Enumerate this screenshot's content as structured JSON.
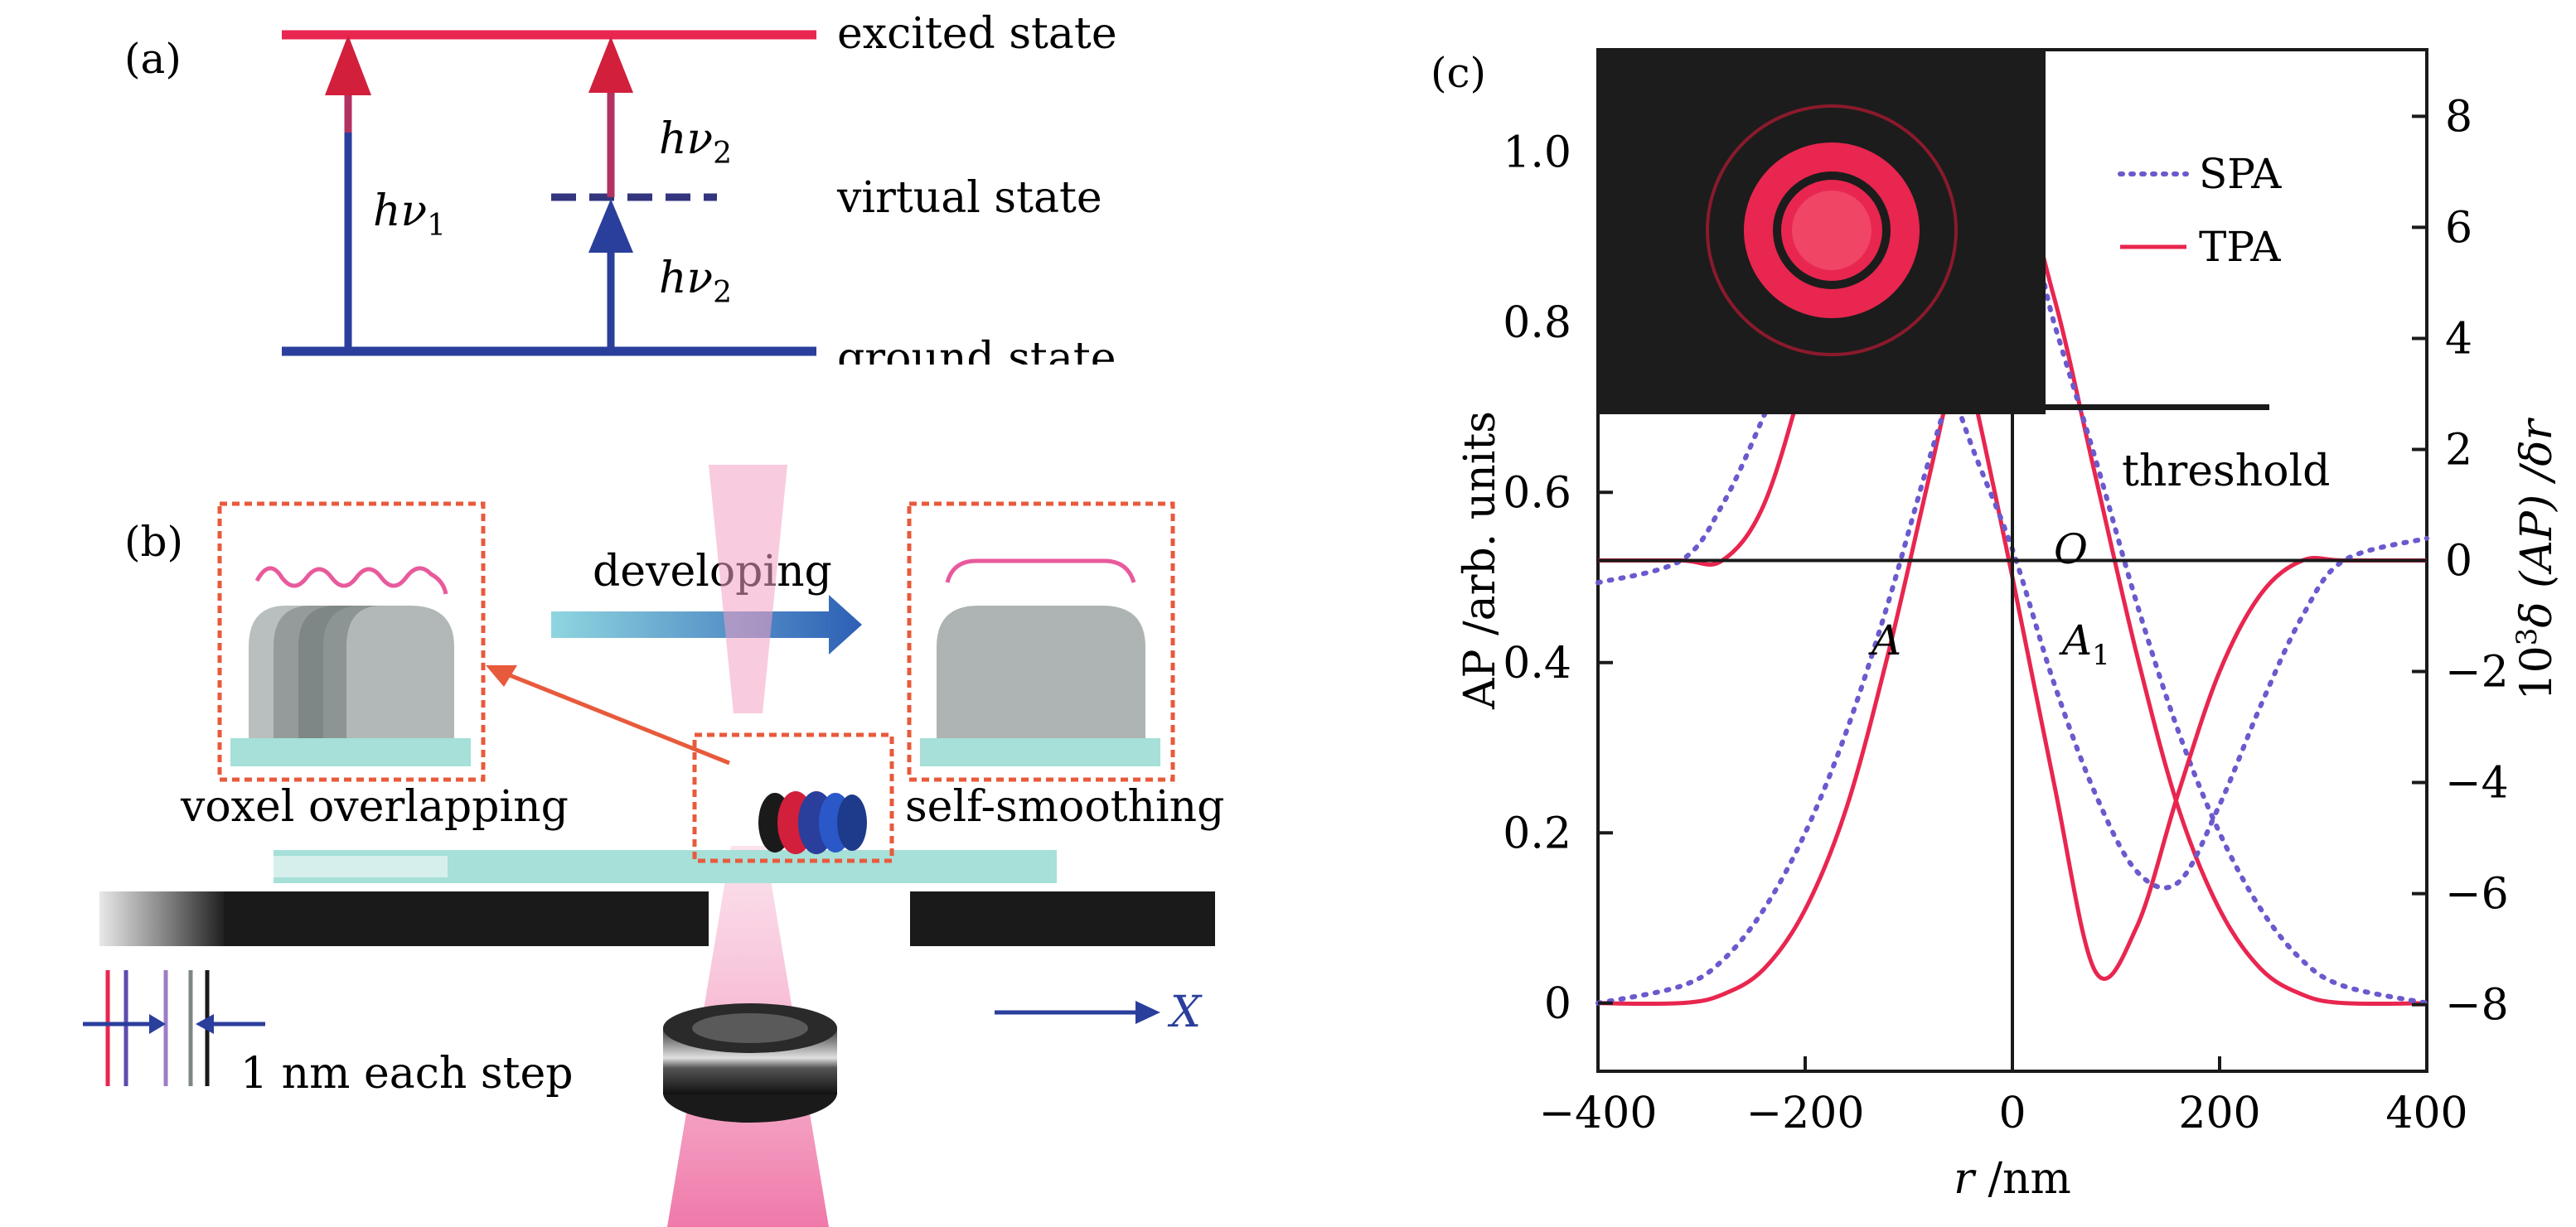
{
  "panel_a": {
    "label": "(a)",
    "excited_state": "excited state",
    "virtual_state": "virtual state",
    "ground_state": "ground state",
    "hv1": "hν",
    "hv1_sub": "1",
    "hv2_top": "hν",
    "hv2_top_sub": "2",
    "hv2_bottom": "hν",
    "hv2_bottom_sub": "2",
    "colors": {
      "excited": "#e8264f",
      "ground": "#2a3e9c",
      "arrow_head_red": "#d11f3c",
      "arrow_head_blue": "#2a3e9c"
    }
  },
  "panel_b": {
    "label": "(b)",
    "developing": "developing",
    "voxel_overlapping": "voxel overlapping",
    "self_smoothing": "self-smoothing",
    "axis_x": "X",
    "step_label": "1 nm each step",
    "colors": {
      "frame": "#e85a3c",
      "beam": "#ee6aa0",
      "stage": "#1a1a1a",
      "substrate": "#a6e0d8",
      "arrow": "#3266b8"
    }
  },
  "panel_c": {
    "label": "(c)",
    "legend": [
      "SPA",
      "TPA"
    ],
    "threshold_label": "threshold",
    "point_O": "O",
    "point_A": "A",
    "point_A1": "A",
    "point_A1_sub": "1",
    "ylabel_left": "AP /arb. units",
    "ylabel_right_prefix": "10",
    "ylabel_right_sup": "3",
    "ylabel_right_rest": "δ (AP) /δr",
    "xlabel_italic": "r",
    "xlabel_rest": " /nm",
    "colors": {
      "tpa": "#e8264f",
      "spa": "#6a5acd",
      "inset_bg": "#1c1c1c",
      "inset_ring": "#e8264f"
    }
  },
  "chart_data": {
    "type": "line",
    "xlabel": "r /nm",
    "ylabel": "AP /arb. units",
    "ylabel_right": "10³δ (AP) /δr",
    "xlim": [
      -400,
      400
    ],
    "ylim": [
      -0.08,
      1.12
    ],
    "ylim_right": [
      -9.2,
      9.2
    ],
    "xticks": [
      "-400",
      "-200",
      "0",
      "200",
      "400"
    ],
    "yticks": [
      "0",
      "0.2",
      "0.4",
      "0.6",
      "0.8",
      "1.0"
    ],
    "yticks_right": [
      "8",
      "6",
      "4",
      "2",
      "0",
      "-2",
      "-4",
      "-6",
      "-8"
    ],
    "legend_position": "top-right",
    "threshold": 0.7,
    "series": [
      {
        "name": "TPA",
        "axis": "left",
        "style": "solid",
        "x": [
          -400,
          -320,
          -280,
          -240,
          -200,
          -160,
          -120,
          -80,
          -40,
          0,
          40,
          80,
          120,
          160,
          200,
          240,
          280,
          320,
          400
        ],
        "values": [
          0.0,
          0.0,
          0.01,
          0.04,
          0.11,
          0.23,
          0.41,
          0.62,
          0.83,
          0.97,
          0.83,
          0.62,
          0.41,
          0.23,
          0.11,
          0.04,
          0.01,
          0.0,
          0.0
        ]
      },
      {
        "name": "SPA",
        "axis": "left",
        "style": "dotted",
        "x": [
          -400,
          -320,
          -280,
          -240,
          -200,
          -160,
          -120,
          -80,
          -40,
          0,
          40,
          80,
          120,
          160,
          200,
          240,
          280,
          320,
          400
        ],
        "values": [
          0.0,
          0.02,
          0.05,
          0.11,
          0.2,
          0.32,
          0.47,
          0.64,
          0.8,
          0.97,
          0.8,
          0.64,
          0.47,
          0.32,
          0.2,
          0.11,
          0.05,
          0.02,
          0.0
        ]
      },
      {
        "name": "TPA",
        "axis": "right",
        "style": "solid",
        "x": [
          -400,
          -320,
          -280,
          -240,
          -200,
          -160,
          -120,
          -80,
          -40,
          0,
          40,
          80,
          120,
          160,
          200,
          240,
          280,
          320,
          400
        ],
        "values": [
          0.0,
          0.0,
          0.0,
          1.0,
          3.4,
          6.3,
          7.4,
          6.2,
          3.2,
          -0.3,
          -4.0,
          -7.4,
          -6.6,
          -4.2,
          -2.0,
          -0.6,
          0.0,
          0.0,
          0.0
        ]
      },
      {
        "name": "SPA",
        "axis": "right",
        "style": "dotted",
        "x": [
          -400,
          -320,
          -280,
          -240,
          -200,
          -160,
          -120,
          -80,
          -40,
          0,
          40,
          80,
          120,
          160,
          200,
          240,
          280,
          320,
          400
        ],
        "values": [
          -0.4,
          0.0,
          1.0,
          2.6,
          4.4,
          5.8,
          5.6,
          4.2,
          2.1,
          0.2,
          -2.2,
          -4.2,
          -5.6,
          -5.8,
          -4.4,
          -2.6,
          -1.0,
          0.0,
          0.4
        ]
      }
    ]
  }
}
